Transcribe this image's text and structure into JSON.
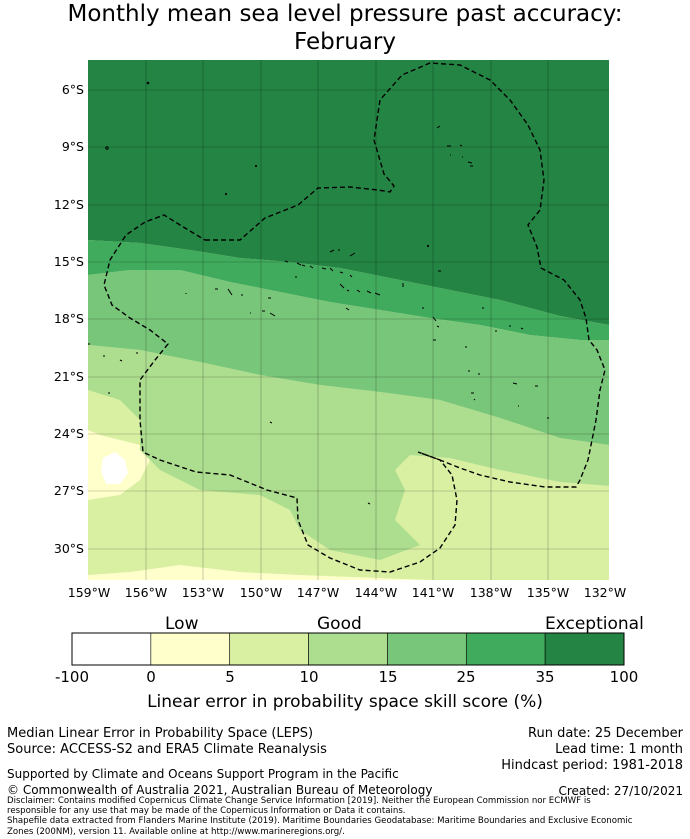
{
  "title": {
    "line1": "Monthly mean sea level pressure past accuracy:",
    "line2": "February"
  },
  "map": {
    "lat_labels": [
      "6°S",
      "9°S",
      "12°S",
      "15°S",
      "18°S",
      "21°S",
      "24°S",
      "27°S",
      "30°S"
    ],
    "lon_labels": [
      "159°W",
      "156°W",
      "153°W",
      "150°W",
      "147°W",
      "144°W",
      "141°W",
      "138°W",
      "135°W",
      "132°W"
    ],
    "region": "Cook Islands exclusive economic zone (dashed outline)"
  },
  "colorbar": {
    "category_labels": [
      "Low",
      "Good",
      "Exceptional"
    ],
    "tick_labels": [
      "-100",
      "0",
      "5",
      "10",
      "15",
      "25",
      "35",
      "100"
    ],
    "bins": [
      {
        "from": -100,
        "to": 0,
        "color": "#ffffff"
      },
      {
        "from": 0,
        "to": 5,
        "color": "#ffffcc"
      },
      {
        "from": 5,
        "to": 10,
        "color": "#d9f0a3"
      },
      {
        "from": 10,
        "to": 15,
        "color": "#addd8e"
      },
      {
        "from": 15,
        "to": 25,
        "color": "#78c679"
      },
      {
        "from": 25,
        "to": 35,
        "color": "#41ab5d"
      },
      {
        "from": 35,
        "to": 100,
        "color": "#238443"
      }
    ],
    "caption": "Linear error in probability space skill score (%)"
  },
  "footer": {
    "metric": "Median Linear Error in Probability Space (LEPS)",
    "source": "Source: ACCESS-S2 and ERA5 Climate Reanalysis",
    "run_date": "Run date: 25 December",
    "lead_time": "Lead time: 1 month",
    "hindcast": "Hindcast period: 1981-2018",
    "support": "Supported by Climate and Oceans Support Program in the Pacific",
    "copyright": "© Commonwealth of Australia 2021, Australian Bureau of Meteorology",
    "created": "Created: 27/10/2021",
    "disclaimer_1": "Disclaimer: Contains modified Copernicus Climate Change Service Information [2019]. Neither the European Commission nor ECMWF is",
    "disclaimer_2": "responsible for any use that may be made of the Copernicus Information or Data it contains.",
    "disclaimer_3": "Shapefile data extracted from Flanders Marine Institute (2019). Maritime Boundaries Geodatabase: Maritime Boundaries and Exclusive Economic",
    "disclaimer_4": "Zones (200NM), version 11. Available online at http://www.marineregions.org/."
  }
}
